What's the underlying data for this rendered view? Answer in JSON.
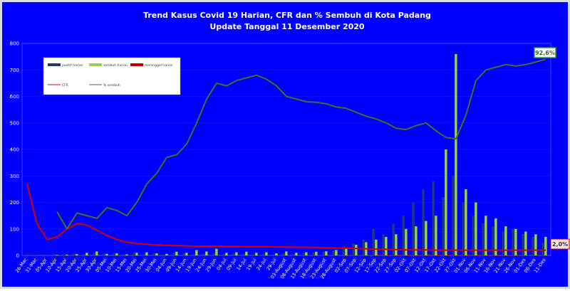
{
  "chart_data": {
    "type": "bar",
    "title": "Trend Kasus Covid 19 Harian, CFR dan % Sembuh di Kota Padang",
    "subtitle": "Update Tanggal 11 Desember  2020",
    "ylim": [
      0,
      800
    ],
    "yticks": [
      0,
      100,
      200,
      300,
      400,
      500,
      600,
      700,
      800
    ],
    "categories": [
      "26-Mar",
      "31-Mar",
      "05-Apr",
      "10-Apr",
      "15-Apr",
      "20-Apr",
      "25-Apr",
      "30-Apr",
      "05-Mei",
      "10-Mei",
      "15-Mei",
      "20-Mei",
      "25-Mei",
      "30-Mei",
      "04-Jun",
      "09-Jun",
      "14-Jun",
      "19-Jun",
      "24-Jun",
      "29-Jun",
      "04-Jul",
      "09-Jul",
      "14-Jul",
      "19-Jul",
      "24-Jul",
      "29-Jul",
      "03-August",
      "08-August",
      "13-August",
      "18-August",
      "23-August",
      "28-August",
      "02-Sep",
      "07-Sep",
      "12-Sep",
      "17-Sep",
      "22-Sep",
      "27-Sep",
      "02-Okt",
      "07-Okt",
      "12-Okt",
      "17-Okt",
      "22-Okt",
      "27-Okt",
      "01-Nov",
      "06-Nov",
      "11-Nov",
      "16-Nov",
      "21-Nov",
      "26-Nov",
      "01-Des",
      "06-Des",
      "11-Des"
    ],
    "series": [
      {
        "name": "positif harian",
        "type": "bar",
        "color": "#1f3a7a",
        "values": [
          2,
          1,
          3,
          5,
          4,
          8,
          6,
          10,
          7,
          9,
          5,
          12,
          6,
          8,
          4,
          10,
          7,
          5,
          6,
          8,
          5,
          9,
          6,
          4,
          7,
          5,
          8,
          6,
          10,
          12,
          14,
          20,
          35,
          45,
          60,
          100,
          80,
          120,
          150,
          200,
          250,
          280,
          220,
          300,
          200,
          150,
          120,
          110,
          90,
          100,
          80,
          70,
          50
        ]
      },
      {
        "name": "sembuh harian",
        "type": "bar",
        "color": "#9acd50",
        "values": [
          0,
          0,
          0,
          2,
          3,
          5,
          10,
          15,
          6,
          8,
          4,
          10,
          12,
          8,
          6,
          14,
          10,
          20,
          15,
          25,
          10,
          12,
          14,
          10,
          12,
          8,
          15,
          10,
          12,
          14,
          16,
          20,
          30,
          40,
          50,
          60,
          70,
          80,
          100,
          110,
          130,
          150,
          400,
          760,
          250,
          200,
          150,
          140,
          110,
          100,
          90,
          80,
          70
        ]
      },
      {
        "name": "meninggal harian",
        "type": "bar",
        "color": "#c00000",
        "values": [
          1,
          0,
          0,
          0,
          0,
          1,
          0,
          0,
          0,
          0,
          1,
          0,
          0,
          0,
          0,
          0,
          1,
          0,
          0,
          1,
          0,
          0,
          0,
          1,
          0,
          0,
          1,
          0,
          1,
          0,
          1,
          1,
          2,
          1,
          2,
          3,
          2,
          3,
          4,
          3,
          5,
          4,
          3,
          2,
          4,
          3,
          2,
          3,
          2,
          2,
          1,
          2,
          1
        ]
      },
      {
        "name": "CFR",
        "type": "line",
        "color": "#d40000",
        "values": [
          270,
          120,
          60,
          70,
          100,
          120,
          115,
          95,
          75,
          60,
          50,
          45,
          42,
          40,
          38,
          37,
          36,
          35,
          35,
          35,
          34,
          34,
          33,
          33,
          33,
          32,
          32,
          31,
          31,
          30,
          29,
          28,
          27,
          26,
          25,
          24,
          23,
          22,
          21,
          21,
          21,
          20,
          20,
          20,
          20,
          20,
          20,
          20,
          20,
          20,
          20,
          20,
          20
        ]
      },
      {
        "name": "% sembuh",
        "type": "line",
        "color": "#4a6a2a",
        "values": [
          null,
          null,
          null,
          165,
          100,
          160,
          150,
          140,
          180,
          170,
          150,
          200,
          270,
          310,
          370,
          380,
          420,
          500,
          590,
          650,
          640,
          660,
          670,
          680,
          665,
          640,
          600,
          590,
          580,
          578,
          572,
          560,
          555,
          540,
          525,
          515,
          500,
          480,
          475,
          490,
          500,
          470,
          445,
          440,
          530,
          660,
          700,
          710,
          720,
          715,
          720,
          730,
          740
        ]
      }
    ],
    "annotations": [
      "92,6%",
      "2,0%"
    ],
    "legend_position": "top-left"
  }
}
